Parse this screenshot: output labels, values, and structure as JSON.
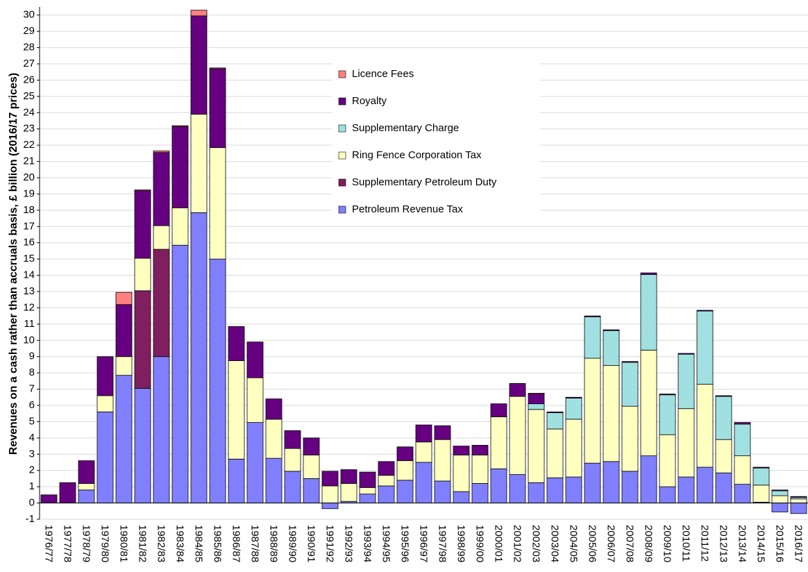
{
  "chart_data": {
    "type": "bar",
    "stacked": true,
    "y_label": "Revenues on a cash rather than accruals basis, £ billion (2016/17 prices)",
    "categories": [
      "1976/77",
      "1977/78",
      "1978/79",
      "1979/80",
      "1980/81",
      "1981/82",
      "1982/83",
      "1983/84",
      "1984/85",
      "1985/86",
      "1986/87",
      "1987/88",
      "1988/89",
      "1989/90",
      "1990/91",
      "1991/92",
      "1992/93",
      "1993/94",
      "1994/95",
      "1995/96",
      "1996/97",
      "1997/98",
      "1998/99",
      "1999/00",
      "2000/01",
      "2001/02",
      "2002/03",
      "2003/04",
      "2004/05",
      "2005/06",
      "2006/07",
      "2007/08",
      "2008/09",
      "2009/10",
      "2010/11",
      "2011/12",
      "2012/13",
      "2013/14",
      "2014/15",
      "2015/16",
      "2016/17"
    ],
    "series": [
      {
        "name": "Petroleum Revenue Tax",
        "color": "#8080ff",
        "values": [
          0,
          0,
          0.8,
          5.6,
          7.85,
          7.05,
          9.0,
          15.85,
          17.85,
          15.0,
          2.7,
          4.95,
          2.75,
          1.95,
          1.5,
          -0.35,
          0.1,
          0.55,
          1.05,
          1.4,
          2.5,
          1.35,
          0.7,
          1.2,
          2.1,
          1.75,
          1.25,
          1.55,
          1.6,
          2.45,
          2.55,
          1.95,
          2.9,
          1.0,
          1.6,
          2.2,
          1.85,
          1.15,
          0.05,
          -0.55,
          -0.65
        ]
      },
      {
        "name": "Supplementary Petroleum Duty",
        "color": "#801f5f",
        "values": [
          0,
          0,
          0,
          0,
          0,
          6.0,
          6.6,
          0,
          0,
          0,
          0,
          0,
          0,
          0,
          0,
          0,
          0,
          0,
          0,
          0,
          0,
          0,
          0,
          0,
          0,
          0,
          0,
          0,
          0,
          0,
          0,
          0,
          0,
          0,
          0,
          0,
          0,
          0,
          0,
          0,
          0
        ]
      },
      {
        "name": "Ring Fence Corporation Tax",
        "color": "#ffffc0",
        "values": [
          0,
          0,
          0.4,
          1.0,
          1.15,
          2.0,
          1.45,
          2.3,
          6.05,
          6.85,
          6.05,
          2.75,
          2.4,
          1.4,
          1.45,
          1.05,
          1.1,
          0.4,
          0.65,
          1.2,
          1.25,
          2.55,
          2.25,
          1.75,
          3.2,
          4.8,
          4.5,
          3.0,
          3.55,
          6.45,
          5.9,
          4.0,
          6.5,
          3.2,
          4.2,
          5.1,
          2.05,
          1.75,
          1.05,
          0.45,
          0.25
        ]
      },
      {
        "name": "Supplementary Charge",
        "color": "#a0e0e0",
        "values": [
          0,
          0,
          0,
          0,
          0,
          0,
          0,
          0,
          0,
          0,
          0,
          0,
          0,
          0,
          0,
          0,
          0,
          0,
          0,
          0,
          0,
          0,
          0,
          0,
          0,
          0,
          0.35,
          1.0,
          1.3,
          2.55,
          2.15,
          2.7,
          4.65,
          2.45,
          3.35,
          4.5,
          2.65,
          1.95,
          1.05,
          0.3,
          0.1
        ]
      },
      {
        "name": "Royalty",
        "color": "#660080",
        "values": [
          0.5,
          1.25,
          1.4,
          2.4,
          3.2,
          4.15,
          4.5,
          5.0,
          6.05,
          4.85,
          2.1,
          2.2,
          1.25,
          1.1,
          1.05,
          0.9,
          0.85,
          0.95,
          0.85,
          0.85,
          1.05,
          0.85,
          0.55,
          0.6,
          0.8,
          0.8,
          0.6,
          0.05,
          0.05,
          0.05,
          0.05,
          0.05,
          0.1,
          0.05,
          0.05,
          0.05,
          0.05,
          0.1,
          0.05,
          0.05,
          0.05
        ]
      },
      {
        "name": "Licence Fees",
        "color": "#ff8080",
        "values": [
          0,
          0,
          0,
          0,
          0.75,
          0.05,
          0.1,
          0.05,
          0.35,
          0.05,
          0,
          0,
          0,
          0,
          0,
          0,
          0,
          0,
          0,
          0,
          0,
          0,
          0,
          0,
          0,
          0,
          0.05,
          0,
          0,
          0,
          0,
          0,
          0,
          0,
          0,
          0,
          0,
          0,
          0,
          0,
          0
        ]
      }
    ],
    "ylim": [
      -1,
      30.5
    ],
    "yticks": [
      -1,
      0,
      1,
      2,
      3,
      4,
      5,
      6,
      7,
      8,
      9,
      10,
      11,
      12,
      13,
      14,
      15,
      16,
      17,
      18,
      19,
      20,
      21,
      22,
      23,
      24,
      25,
      26,
      27,
      28,
      29,
      30
    ],
    "grid": true
  }
}
